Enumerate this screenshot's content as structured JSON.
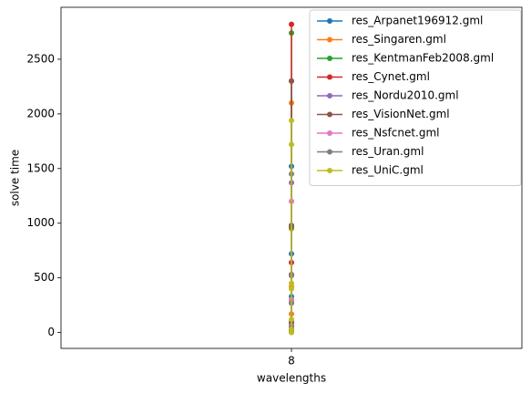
{
  "chart_data": {
    "type": "line",
    "xlabel": "wavelengths",
    "ylabel": "solve time",
    "xlim": [
      7.95,
      8.05
    ],
    "xticks": [
      8
    ],
    "ylim": [
      -145,
      2975
    ],
    "yticks": [
      0,
      500,
      1000,
      1500,
      2000,
      2500
    ],
    "legend": "upper right",
    "series": [
      {
        "name": "res_Arpanet196912.gml",
        "color": "#1f77b4",
        "x": [
          8,
          8,
          8,
          8,
          8
        ],
        "values": [
          1520,
          720,
          330,
          80,
          10
        ]
      },
      {
        "name": "res_Singaren.gml",
        "color": "#ff7f0e",
        "x": [
          8,
          8,
          8,
          8,
          8
        ],
        "values": [
          2100,
          950,
          420,
          170,
          40
        ]
      },
      {
        "name": "res_KentmanFeb2008.gml",
        "color": "#2ca02c",
        "x": [
          8,
          8,
          8,
          8,
          8
        ],
        "values": [
          2740,
          960,
          300,
          60,
          10
        ]
      },
      {
        "name": "res_Cynet.gml",
        "color": "#d62728",
        "x": [
          8,
          8,
          8,
          8,
          8
        ],
        "values": [
          2820,
          2300,
          640,
          270,
          30
        ]
      },
      {
        "name": "res_Nordu2010.gml",
        "color": "#9467bd",
        "x": [
          8,
          8,
          8,
          8
        ],
        "values": [
          1370,
          530,
          90,
          20
        ]
      },
      {
        "name": "res_VisionNet.gml",
        "color": "#8c564b",
        "x": [
          8,
          8,
          8,
          8,
          8
        ],
        "values": [
          2300,
          980,
          530,
          100,
          15
        ]
      },
      {
        "name": "res_Nsfcnet.gml",
        "color": "#e377c2",
        "x": [
          8,
          8,
          8,
          8
        ],
        "values": [
          1200,
          300,
          60,
          5
        ]
      },
      {
        "name": "res_Uran.gml",
        "color": "#7f7f7f",
        "x": [
          8,
          8,
          8,
          8,
          8
        ],
        "values": [
          1450,
          520,
          270,
          50,
          5
        ]
      },
      {
        "name": "res_UniC.gml",
        "color": "#bcbd22",
        "x": [
          8,
          8,
          8,
          8,
          8,
          8,
          8
        ],
        "values": [
          1940,
          1720,
          450,
          400,
          120,
          30,
          0
        ]
      }
    ]
  }
}
